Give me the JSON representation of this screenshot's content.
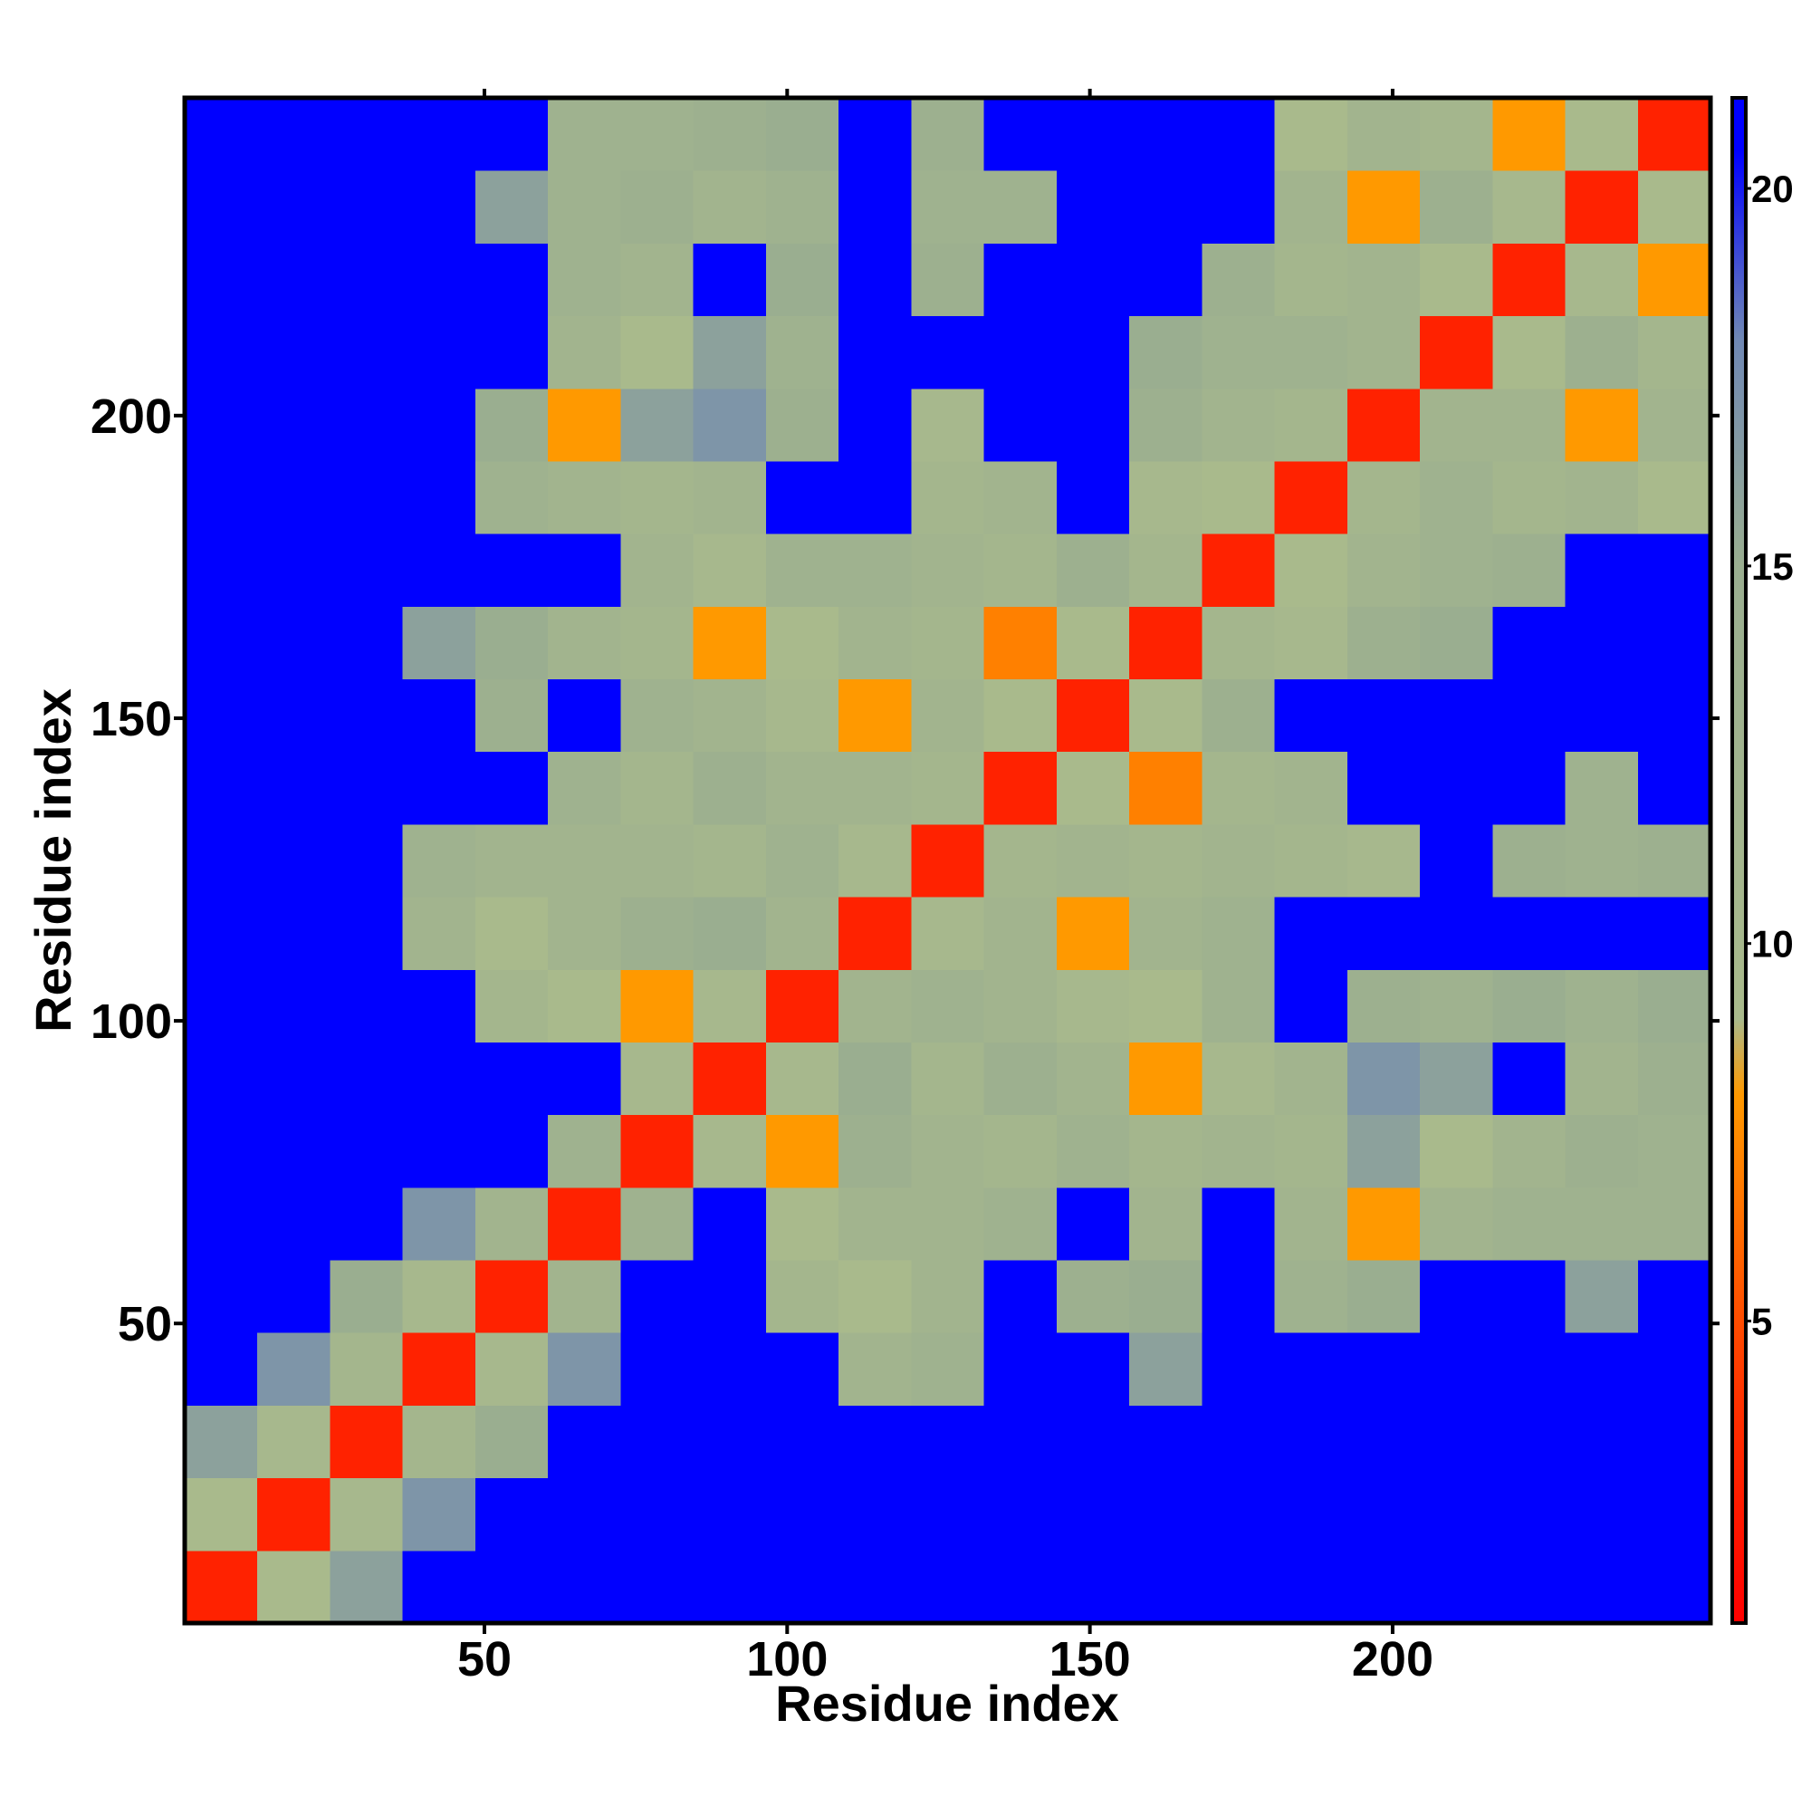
{
  "chart_data": {
    "type": "heatmap",
    "xlabel": "Residue index",
    "ylabel": "Residue index",
    "xbins": [
      0.5,
      12.5,
      24.5,
      36.5,
      48.5,
      60.5,
      72.5,
      84.5,
      96.5,
      108.5,
      120.5,
      132.5,
      144.5,
      156.5,
      168.5,
      180.5,
      192.5,
      204.5,
      216.5,
      228.5,
      240.5,
      252.5
    ],
    "ybins": [
      0.5,
      12.5,
      24.5,
      36.5,
      48.5,
      60.5,
      72.5,
      84.5,
      96.5,
      108.5,
      120.5,
      132.5,
      144.5,
      156.5,
      168.5,
      180.5,
      192.5,
      204.5,
      216.5,
      228.5,
      240.5,
      252.5
    ],
    "xlim": [
      0.5,
      252.5
    ],
    "ylim": [
      0.5,
      252.5
    ],
    "xticks": [
      50,
      100,
      150,
      200
    ],
    "yticks": [
      50,
      100,
      150,
      200
    ],
    "zlim": [
      1,
      21.2
    ],
    "zticks": [
      5,
      10,
      15,
      20
    ],
    "colorscale": [
      [
        1,
        "#ff0000"
      ],
      [
        4,
        "#ff3300"
      ],
      [
        8,
        "#ff9900"
      ],
      [
        9,
        "#a9ba8c"
      ],
      [
        15,
        "#9aae90"
      ],
      [
        18,
        "#7088b4"
      ],
      [
        20.5,
        "#0000ff"
      ]
    ],
    "z": [
      [
        3,
        9,
        16,
        21,
        21,
        21,
        21,
        21,
        21,
        21,
        21,
        21,
        21,
        21,
        21,
        21,
        21,
        21,
        21,
        21,
        21
      ],
      [
        9,
        3,
        10,
        17,
        21,
        21,
        21,
        21,
        21,
        21,
        21,
        21,
        21,
        21,
        21,
        21,
        21,
        21,
        21,
        21,
        21
      ],
      [
        16,
        10,
        3,
        11,
        15,
        21,
        21,
        21,
        21,
        21,
        21,
        21,
        21,
        21,
        21,
        21,
        21,
        21,
        21,
        21,
        21
      ],
      [
        21,
        17,
        11,
        3,
        10,
        17,
        21,
        21,
        21,
        12,
        13,
        21,
        21,
        16,
        21,
        21,
        21,
        21,
        21,
        21,
        21
      ],
      [
        21,
        21,
        15,
        10,
        3,
        12,
        21,
        21,
        11,
        9,
        12,
        21,
        14,
        15,
        21,
        13,
        15,
        21,
        21,
        16,
        21
      ],
      [
        21,
        21,
        21,
        17,
        12,
        3,
        13,
        21,
        9,
        12,
        12,
        13,
        21,
        12,
        21,
        12,
        8,
        12,
        13,
        13,
        13
      ],
      [
        21,
        21,
        21,
        21,
        21,
        13,
        3,
        10,
        8,
        14,
        12,
        11,
        13,
        11,
        12,
        11,
        16,
        9,
        12,
        14,
        13
      ],
      [
        21,
        21,
        21,
        21,
        21,
        21,
        10,
        3,
        10,
        15,
        11,
        14,
        12,
        8,
        10,
        12,
        17,
        16,
        21,
        12,
        14
      ],
      [
        21,
        21,
        21,
        21,
        11,
        9,
        8,
        10,
        3,
        12,
        13,
        12,
        10,
        9,
        13,
        21,
        14,
        13,
        15,
        13,
        15
      ],
      [
        21,
        21,
        21,
        12,
        9,
        12,
        14,
        15,
        12,
        3,
        10,
        12,
        8,
        12,
        13,
        21,
        21,
        21,
        21,
        21,
        21
      ],
      [
        21,
        21,
        21,
        13,
        12,
        12,
        12,
        11,
        13,
        10,
        3,
        11,
        12,
        11,
        12,
        11,
        10,
        21,
        14,
        13,
        14
      ],
      [
        21,
        21,
        21,
        21,
        21,
        13,
        11,
        14,
        12,
        12,
        11,
        3,
        9,
        7,
        11,
        12,
        21,
        21,
        21,
        13,
        21
      ],
      [
        21,
        21,
        21,
        21,
        14,
        21,
        13,
        12,
        10,
        8,
        12,
        9,
        3,
        9,
        14,
        21,
        21,
        21,
        21,
        21,
        21
      ],
      [
        21,
        21,
        21,
        16,
        15,
        12,
        11,
        8,
        9,
        12,
        11,
        7,
        9,
        3,
        11,
        10,
        14,
        15,
        21,
        21,
        21
      ],
      [
        21,
        21,
        21,
        21,
        21,
        21,
        12,
        10,
        13,
        13,
        12,
        11,
        14,
        11,
        3,
        9,
        12,
        13,
        14,
        21,
        21
      ],
      [
        21,
        21,
        21,
        21,
        13,
        12,
        11,
        12,
        21,
        21,
        11,
        12,
        21,
        10,
        9,
        3,
        11,
        13,
        11,
        12,
        9
      ],
      [
        21,
        21,
        21,
        21,
        15,
        8,
        16,
        17,
        14,
        21,
        10,
        21,
        21,
        14,
        12,
        11,
        3,
        12,
        12,
        8,
        12
      ],
      [
        21,
        21,
        21,
        21,
        21,
        12,
        9,
        16,
        13,
        21,
        21,
        21,
        21,
        15,
        13,
        13,
        12,
        3,
        9,
        14,
        11
      ],
      [
        21,
        21,
        21,
        21,
        21,
        13,
        12,
        21,
        15,
        21,
        14,
        21,
        21,
        21,
        14,
        11,
        12,
        9,
        3,
        10,
        8
      ],
      [
        21,
        21,
        21,
        21,
        16,
        13,
        14,
        12,
        13,
        21,
        13,
        13,
        21,
        21,
        21,
        12,
        8,
        14,
        10,
        3,
        9
      ],
      [
        21,
        21,
        21,
        21,
        21,
        13,
        13,
        14,
        15,
        21,
        14,
        21,
        21,
        21,
        21,
        9,
        12,
        11,
        8,
        9,
        3
      ]
    ]
  }
}
